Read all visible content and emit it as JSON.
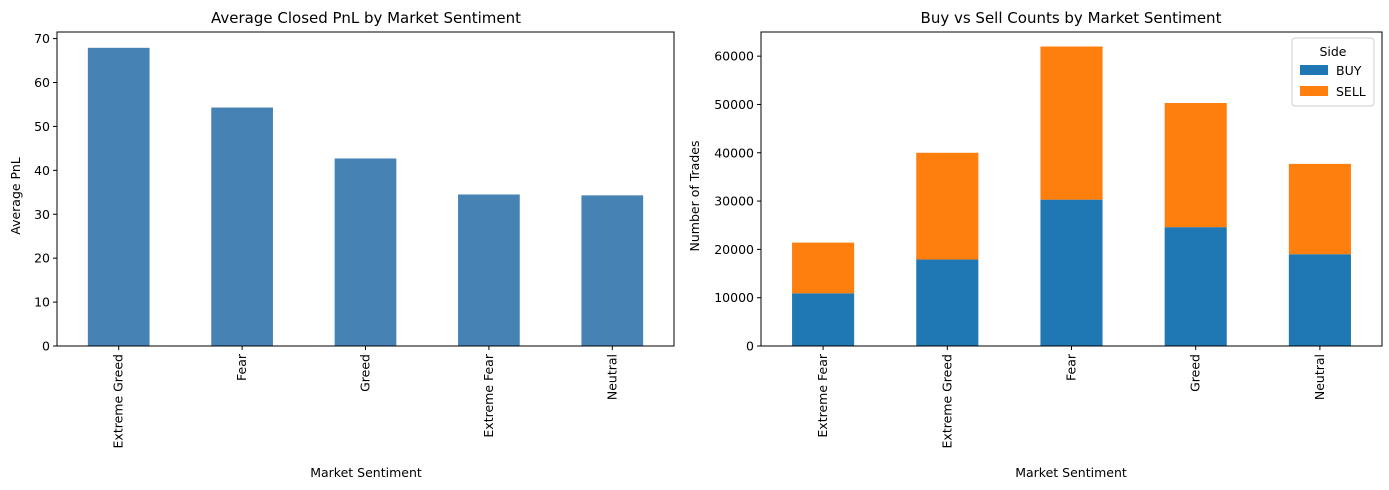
{
  "chart_data": [
    {
      "type": "bar",
      "title": "Average Closed PnL by Market Sentiment",
      "xlabel": "Market Sentiment",
      "ylabel": "Average PnL",
      "categories": [
        "Extreme Greed",
        "Fear",
        "Greed",
        "Extreme Fear",
        "Neutral"
      ],
      "values": [
        67.9,
        54.3,
        42.7,
        34.5,
        34.3
      ],
      "ylim": [
        0,
        71.5
      ],
      "yticks": [
        0,
        10,
        20,
        30,
        40,
        50,
        60,
        70
      ],
      "color": "#4682b4",
      "grid": false
    },
    {
      "type": "bar",
      "stacked": true,
      "title": "Buy vs Sell Counts by Market Sentiment",
      "xlabel": "Market Sentiment",
      "ylabel": "Number of Trades",
      "categories": [
        "Extreme Fear",
        "Extreme Greed",
        "Fear",
        "Greed",
        "Neutral"
      ],
      "series": [
        {
          "name": "BUY",
          "values": [
            10900,
            17900,
            30300,
            24600,
            19000
          ],
          "color": "#1f77b4"
        },
        {
          "name": "SELL",
          "values": [
            10500,
            22100,
            31700,
            25700,
            18700
          ],
          "color": "#ff7f0e"
        }
      ],
      "ylim": [
        0,
        65000
      ],
      "yticks": [
        0,
        10000,
        20000,
        30000,
        40000,
        50000,
        60000
      ],
      "legend": {
        "title": "Side",
        "placement": "top-right"
      },
      "grid": false
    }
  ]
}
